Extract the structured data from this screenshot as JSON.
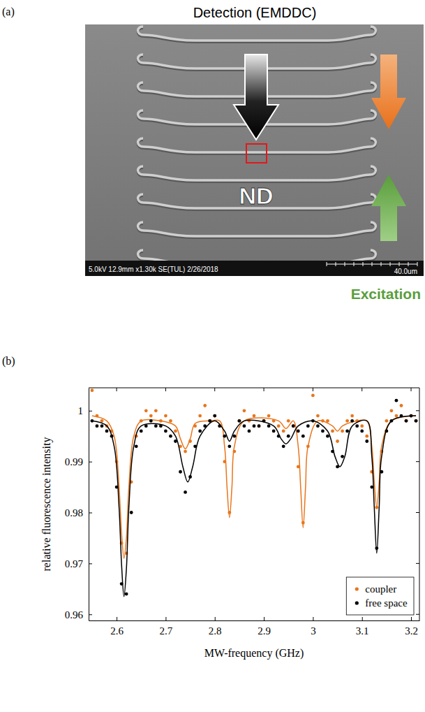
{
  "panel_a": {
    "label": "(a)",
    "title": "Detection (EMDDC)",
    "marker_label": "ND",
    "arrow_label": "Excitation",
    "scale_bar": {
      "info": "5.0kV 12.9mm x1.30k SE(TUL) 2/26/2018",
      "length": "40.0um"
    }
  },
  "panel_b": {
    "label": "(b)"
  },
  "chart_data": {
    "type": "scatter",
    "x_label": "MW-frequency (GHz)",
    "y_label": "relative fluorescence intensity",
    "xlim": [
      2.543,
      3.217
    ],
    "ylim": [
      0.9588,
      1.0045
    ],
    "xticks": [
      2.6,
      2.7,
      2.8,
      2.9,
      3,
      3.1,
      3.2
    ],
    "yticks": [
      0.96,
      0.97,
      0.98,
      0.99,
      1
    ],
    "grid": false,
    "legend": "lower right",
    "series": [
      {
        "name": "coupler",
        "type": "scatter",
        "marker": "circle",
        "color": "#e8761c",
        "x": [
          2.55,
          2.56,
          2.57,
          2.58,
          2.59,
          2.6,
          2.61,
          2.62,
          2.63,
          2.64,
          2.65,
          2.66,
          2.67,
          2.68,
          2.69,
          2.7,
          2.71,
          2.72,
          2.73,
          2.74,
          2.75,
          2.76,
          2.77,
          2.78,
          2.79,
          2.8,
          2.81,
          2.82,
          2.83,
          2.84,
          2.85,
          2.86,
          2.87,
          2.88,
          2.89,
          2.9,
          2.91,
          2.92,
          2.93,
          2.94,
          2.95,
          2.96,
          2.97,
          2.98,
          2.99,
          3,
          3.01,
          3.02,
          3.03,
          3.04,
          3.05,
          3.06,
          3.07,
          3.08,
          3.09,
          3.1,
          3.11,
          3.12,
          3.13,
          3.14,
          3.15,
          3.16,
          3.17,
          3.18,
          3.19,
          3.2,
          3.21
        ],
        "values": [
          1.004,
          0.999,
          0.998,
          0.997,
          0.996,
          0.99,
          0.974,
          0.972,
          0.986,
          0.995,
          0.998,
          1,
          0.999,
          1,
          0.998,
          0.999,
          0.998,
          0.996,
          0.993,
          0.992,
          0.994,
          0.997,
          0.999,
          1.001,
          0.998,
          0.999,
          0.997,
          0.99,
          0.98,
          0.992,
          0.998,
          1,
          0.998,
          0.999,
          0.997,
          0.998,
          0.999,
          0.998,
          0.997,
          0.996,
          0.998,
          0.997,
          0.989,
          0.978,
          0.993,
          1.003,
          0.999,
          0.998,
          0.998,
          0.996,
          0.994,
          0.996,
          0.998,
          0.999,
          0.998,
          0.997,
          0.995,
          0.988,
          0.981,
          0.992,
          0.998,
          1,
          0.999,
          1.001,
          0.998,
          0.999,
          0.998
        ]
      },
      {
        "type": "line",
        "line_style": "solid",
        "color": "#e8761c",
        "x": [
          2.55,
          2.58,
          2.595,
          2.605,
          2.61,
          2.615,
          2.62,
          2.625,
          2.635,
          2.65,
          2.69,
          2.72,
          2.73,
          2.74,
          2.75,
          2.76,
          2.79,
          2.81,
          2.82,
          2.825,
          2.83,
          2.835,
          2.84,
          2.86,
          2.93,
          2.945,
          2.96,
          2.97,
          2.975,
          2.98,
          2.985,
          2.99,
          3.01,
          3.04,
          3.05,
          3.06,
          3.09,
          3.11,
          3.12,
          3.125,
          3.13,
          3.135,
          3.14,
          3.16,
          3.21
        ],
        "values": [
          0.999,
          0.998,
          0.995,
          0.985,
          0.976,
          0.971,
          0.975,
          0.985,
          0.995,
          0.998,
          0.998,
          0.997,
          0.9945,
          0.9925,
          0.9945,
          0.9975,
          0.998,
          0.998,
          0.993,
          0.985,
          0.979,
          0.985,
          0.993,
          0.998,
          0.998,
          0.9965,
          0.998,
          0.993,
          0.985,
          0.977,
          0.985,
          0.993,
          0.998,
          0.997,
          0.996,
          0.997,
          0.998,
          0.998,
          0.993,
          0.986,
          0.981,
          0.986,
          0.993,
          0.998,
          0.999
        ]
      },
      {
        "name": "free space",
        "type": "scatter",
        "marker": "circle",
        "color": "#000000",
        "x": [
          2.55,
          2.56,
          2.57,
          2.58,
          2.59,
          2.6,
          2.61,
          2.62,
          2.63,
          2.64,
          2.65,
          2.66,
          2.67,
          2.68,
          2.69,
          2.7,
          2.71,
          2.72,
          2.73,
          2.74,
          2.75,
          2.76,
          2.77,
          2.78,
          2.79,
          2.8,
          2.81,
          2.82,
          2.83,
          2.84,
          2.85,
          2.86,
          2.87,
          2.88,
          2.89,
          2.9,
          2.91,
          2.92,
          2.93,
          2.94,
          2.95,
          2.96,
          2.97,
          2.98,
          2.99,
          3,
          3.01,
          3.02,
          3.03,
          3.04,
          3.05,
          3.06,
          3.07,
          3.08,
          3.09,
          3.1,
          3.11,
          3.12,
          3.13,
          3.14,
          3.15,
          3.16,
          3.17,
          3.18,
          3.19,
          3.2,
          3.21
        ],
        "values": [
          0.998,
          0.997,
          0.997,
          0.996,
          0.995,
          0.985,
          0.966,
          0.964,
          0.98,
          0.993,
          0.996,
          0.997,
          0.998,
          0.997,
          0.997,
          0.996,
          0.995,
          0.994,
          0.988,
          0.984,
          0.987,
          0.993,
          0.996,
          0.997,
          0.998,
          0.999,
          0.997,
          0.995,
          0.993,
          0.995,
          0.998,
          0.997,
          0.996,
          0.997,
          0.997,
          0.998,
          0.997,
          0.996,
          0.995,
          0.993,
          0.995,
          0.997,
          0.996,
          0.995,
          0.997,
          0.998,
          0.997,
          0.996,
          0.995,
          0.992,
          0.989,
          0.991,
          0.996,
          0.998,
          0.997,
          0.996,
          0.994,
          0.985,
          0.973,
          0.988,
          0.996,
          0.998,
          1.002,
          0.999,
          0.998,
          0.999,
          0.998
        ]
      },
      {
        "type": "line",
        "line_style": "solid",
        "color": "#000000",
        "x": [
          2.55,
          2.58,
          2.595,
          2.605,
          2.61,
          2.615,
          2.62,
          2.625,
          2.635,
          2.65,
          2.7,
          2.72,
          2.735,
          2.745,
          2.755,
          2.77,
          2.8,
          2.82,
          2.83,
          2.84,
          2.86,
          2.92,
          2.935,
          2.945,
          2.955,
          2.97,
          3,
          3.03,
          3.045,
          3.055,
          3.065,
          3.08,
          3.11,
          3.12,
          3.125,
          3.13,
          3.135,
          3.14,
          3.16,
          3.21
        ],
        "values": [
          0.998,
          0.997,
          0.993,
          0.981,
          0.97,
          0.9635,
          0.969,
          0.981,
          0.993,
          0.997,
          0.997,
          0.995,
          0.989,
          0.986,
          0.989,
          0.995,
          0.998,
          0.996,
          0.994,
          0.996,
          0.998,
          0.997,
          0.9945,
          0.9935,
          0.9945,
          0.997,
          0.998,
          0.996,
          0.991,
          0.989,
          0.991,
          0.997,
          0.998,
          0.991,
          0.981,
          0.972,
          0.981,
          0.991,
          0.998,
          0.999
        ]
      }
    ]
  }
}
